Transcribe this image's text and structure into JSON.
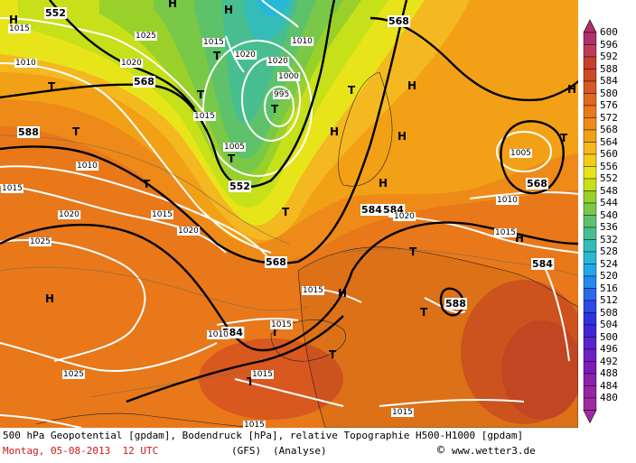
{
  "footer": {
    "line1": "500 hPa Geopotential [gpdam], Bodendruck [hPa], relative Topographie H500-H1000 [gpdam]",
    "date": "Montag, 05-08-2013  12 UTC",
    "model": "(GFS)",
    "type": "(Analyse)",
    "copyright_symbol": "©",
    "site": "www.wetter3.de"
  },
  "scale": {
    "labels": [
      "600",
      "596",
      "592",
      "588",
      "584",
      "580",
      "576",
      "572",
      "568",
      "564",
      "560",
      "556",
      "552",
      "548",
      "544",
      "540",
      "536",
      "532",
      "528",
      "524",
      "520",
      "516",
      "512",
      "508",
      "504",
      "500",
      "496",
      "492",
      "488",
      "484",
      "480"
    ],
    "colors": [
      "#b0306a",
      "#c03a5a",
      "#c8402c",
      "#cc4a24",
      "#d85820",
      "#e0681c",
      "#e8781a",
      "#ee8a18",
      "#f2a016",
      "#f4b820",
      "#f2cc18",
      "#e8e41a",
      "#c6e01a",
      "#9ad02a",
      "#7ac848",
      "#5ec26a",
      "#48be90",
      "#34bcb8",
      "#26b8d6",
      "#22a8ea",
      "#2488ec",
      "#2868ea",
      "#2c4ae6",
      "#3032e0",
      "#3e28d6",
      "#5a24cc",
      "#6e20c4",
      "#7c1cb8",
      "#8a22ae",
      "#9426a6",
      "#a02aa0"
    ]
  },
  "map": {
    "high_marker": "H",
    "low_marker": "T",
    "geopotential_labels": [
      "552",
      "568",
      "568",
      "588",
      "552",
      "568",
      "584",
      "584",
      "584",
      "568",
      "588",
      "584"
    ],
    "pressure_labels": [
      "1015",
      "1025",
      "1010",
      "1020",
      "1015",
      "1020",
      "1020",
      "1000",
      "1015",
      "1010",
      "995",
      "1005",
      "1005",
      "1010",
      "1010",
      "1015",
      "1020",
      "1015",
      "1025",
      "1020",
      "1020",
      "1015",
      "1025",
      "1015",
      "1015",
      "1015",
      "1010",
      "1015",
      "1015"
    ]
  }
}
